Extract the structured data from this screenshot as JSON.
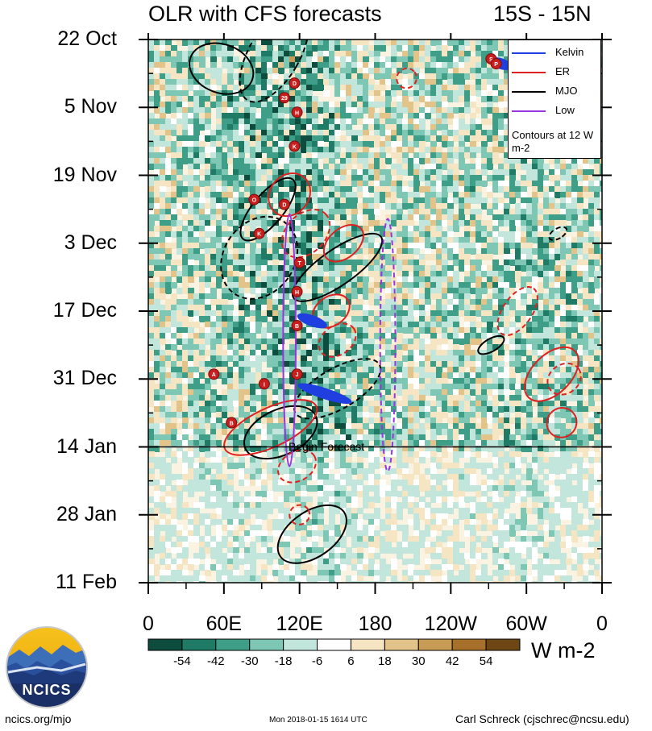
{
  "header": {
    "title": "OLR with CFS forecasts",
    "region": "15S - 15N"
  },
  "chart_data": {
    "type": "heatmap",
    "title": "OLR with CFS forecasts",
    "subtitle": "15S - 15N",
    "x_tick_labels": [
      "0",
      "60E",
      "120E",
      "180",
      "120W",
      "60W",
      "0"
    ],
    "x_tick_positions_deg_east": [
      0,
      60,
      120,
      180,
      240,
      300,
      360
    ],
    "y_tick_labels": [
      "22 Oct",
      "5 Nov",
      "19 Nov",
      "3 Dec",
      "17 Dec",
      "31 Dec",
      "14 Jan",
      "28 Jan",
      "11 Feb"
    ],
    "y_tick_day_offsets": [
      0,
      14,
      28,
      42,
      56,
      70,
      84,
      98,
      112
    ],
    "xlim": [
      0,
      360
    ],
    "ylim_days": [
      0,
      112
    ],
    "forecast_start_day": 84,
    "forecast_label": "Begin Forecast",
    "colorbar": {
      "tick_labels": [
        "-54",
        "-42",
        "-30",
        "-18",
        "-6",
        "6",
        "18",
        "30",
        "42",
        "54"
      ],
      "units": "W m-2",
      "colors": [
        "#0e4d3e",
        "#1f7a66",
        "#3f9e88",
        "#7ec7b4",
        "#c2e6dc",
        "#ffffff",
        "#f6e5c2",
        "#e2c389",
        "#c89c55",
        "#a7702a",
        "#6e4616"
      ]
    },
    "legend": {
      "items": [
        {
          "name": "Kelvin",
          "color": "#1f3fe0",
          "style": "solid"
        },
        {
          "name": "ER",
          "color": "#e02020",
          "style": "solid"
        },
        {
          "name": "MJO",
          "color": "#000000",
          "style": "solid"
        },
        {
          "name": "Low",
          "color": "#9a33e0",
          "style": "solid"
        }
      ],
      "note": "Contours at 12 W m-2",
      "position": "top-right"
    },
    "storm_markers": [
      "S",
      "P",
      "D",
      "29",
      "H",
      "K",
      "O",
      "D",
      "K",
      "T",
      "H",
      "B",
      "A",
      "I",
      "J",
      "B"
    ],
    "contours": [
      {
        "type": "MJO",
        "sign": "pos",
        "lon": 58,
        "day": 6,
        "w": 26,
        "h": 5,
        "rot": 20
      },
      {
        "type": "MJO",
        "sign": "neg",
        "lon": 100,
        "day": 3,
        "w": 20,
        "h": 11,
        "rot": 30
      },
      {
        "type": "MJO",
        "sign": "pos",
        "lon": 95,
        "day": 35,
        "w": 12,
        "h": 8,
        "rot": 40
      },
      {
        "type": "MJO",
        "sign": "neg",
        "lon": 88,
        "day": 45,
        "w": 28,
        "h": 9,
        "rot": 35
      },
      {
        "type": "MJO",
        "sign": "pos",
        "lon": 150,
        "day": 47,
        "w": 14,
        "h": 11,
        "rot": 55
      },
      {
        "type": "MJO",
        "sign": "neg",
        "lon": 150,
        "day": 72,
        "w": 16,
        "h": 10,
        "rot": 60
      },
      {
        "type": "MJO",
        "sign": "pos",
        "lon": 105,
        "day": 81,
        "w": 18,
        "h": 8,
        "rot": 65
      },
      {
        "type": "MJO",
        "sign": "pos",
        "lon": 130,
        "day": 102,
        "w": 18,
        "h": 8,
        "rot": 55
      },
      {
        "type": "MJO",
        "sign": "pos",
        "lon": 272,
        "day": 63,
        "w": 5,
        "h": 3,
        "rot": 60
      },
      {
        "type": "MJO",
        "sign": "neg",
        "lon": 325,
        "day": 40,
        "w": 4,
        "h": 2,
        "rot": 60
      },
      {
        "type": "ER",
        "sign": "pos",
        "lon": 112,
        "day": 32,
        "w": 18,
        "h": 4,
        "rot": -50
      },
      {
        "type": "ER",
        "sign": "neg",
        "lon": 125,
        "day": 40,
        "w": 22,
        "h": 4,
        "rot": -45
      },
      {
        "type": "ER",
        "sign": "pos",
        "lon": 155,
        "day": 42,
        "w": 18,
        "h": 3,
        "rot": -40
      },
      {
        "type": "ER",
        "sign": "pos",
        "lon": 145,
        "day": 56,
        "w": 16,
        "h": 3,
        "rot": -35
      },
      {
        "type": "ER",
        "sign": "neg",
        "lon": 150,
        "day": 62,
        "w": 16,
        "h": 3,
        "rot": -35
      },
      {
        "type": "ER",
        "sign": "pos",
        "lon": 97,
        "day": 80,
        "w": 40,
        "h": 4,
        "rot": -25
      },
      {
        "type": "ER",
        "sign": "neg",
        "lon": 118,
        "day": 88,
        "w": 16,
        "h": 3,
        "rot": -30
      },
      {
        "type": "ER",
        "sign": "neg",
        "lon": 120,
        "day": 98,
        "w": 8,
        "h": 2,
        "rot": -30
      },
      {
        "type": "ER",
        "sign": "neg",
        "lon": 293,
        "day": 56,
        "w": 22,
        "h": 3,
        "rot": -55
      },
      {
        "type": "ER",
        "sign": "pos",
        "lon": 320,
        "day": 69,
        "w": 26,
        "h": 4,
        "rot": -45
      },
      {
        "type": "ER",
        "sign": "neg",
        "lon": 330,
        "day": 70,
        "w": 14,
        "h": 3,
        "rot": -35
      },
      {
        "type": "ER",
        "sign": "pos",
        "lon": 328,
        "day": 79,
        "w": 12,
        "h": 3,
        "rot": -40
      },
      {
        "type": "ER",
        "sign": "neg",
        "lon": 205,
        "day": 8,
        "w": 8,
        "h": 2,
        "rot": -40
      },
      {
        "type": "Low",
        "sign": "pos",
        "lon": 112,
        "day": 62,
        "w": 5,
        "h": 26,
        "rot": 0
      },
      {
        "type": "Low",
        "sign": "neg",
        "lon": 190,
        "day": 63,
        "w": 6,
        "h": 26,
        "rot": 0
      },
      {
        "type": "Kelvin",
        "sign": "pos",
        "lon": 130,
        "day": 58,
        "w": 12,
        "h": 1,
        "rot": 20
      },
      {
        "type": "Kelvin",
        "sign": "pos",
        "lon": 140,
        "day": 73,
        "w": 22,
        "h": 1,
        "rot": 18
      },
      {
        "type": "Kelvin",
        "sign": "pos",
        "lon": 280,
        "day": 5,
        "w": 8,
        "h": 1,
        "rot": 20
      }
    ]
  },
  "footer": {
    "logo_label": "NCICS",
    "left": "ncics.org/mjo",
    "middle": "Mon 2018-01-15 1614 UTC",
    "right": "Carl Schreck (cjschrec@ncsu.edu)"
  }
}
